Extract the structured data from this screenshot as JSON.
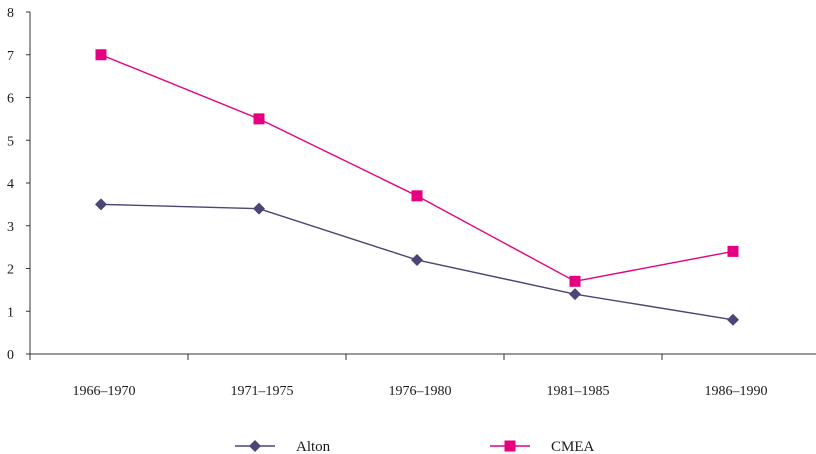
{
  "chart_data": {
    "type": "line",
    "categories": [
      "1966–1970",
      "1971–1975",
      "1976–1980",
      "1981–1985",
      "1986–1990"
    ],
    "series": [
      {
        "name": "Alton",
        "values": [
          3.5,
          3.4,
          2.2,
          1.4,
          0.8
        ],
        "color": "#4a4675",
        "marker": "diamond"
      },
      {
        "name": "CMEA",
        "values": [
          7.0,
          5.5,
          3.7,
          1.7,
          2.4
        ],
        "color": "#e4007f",
        "marker": "square"
      }
    ],
    "y_ticks": [
      0,
      1,
      2,
      3,
      4,
      5,
      6,
      7,
      8
    ],
    "ylim": [
      0,
      8
    ],
    "grid": false,
    "legend_position": "bottom"
  }
}
